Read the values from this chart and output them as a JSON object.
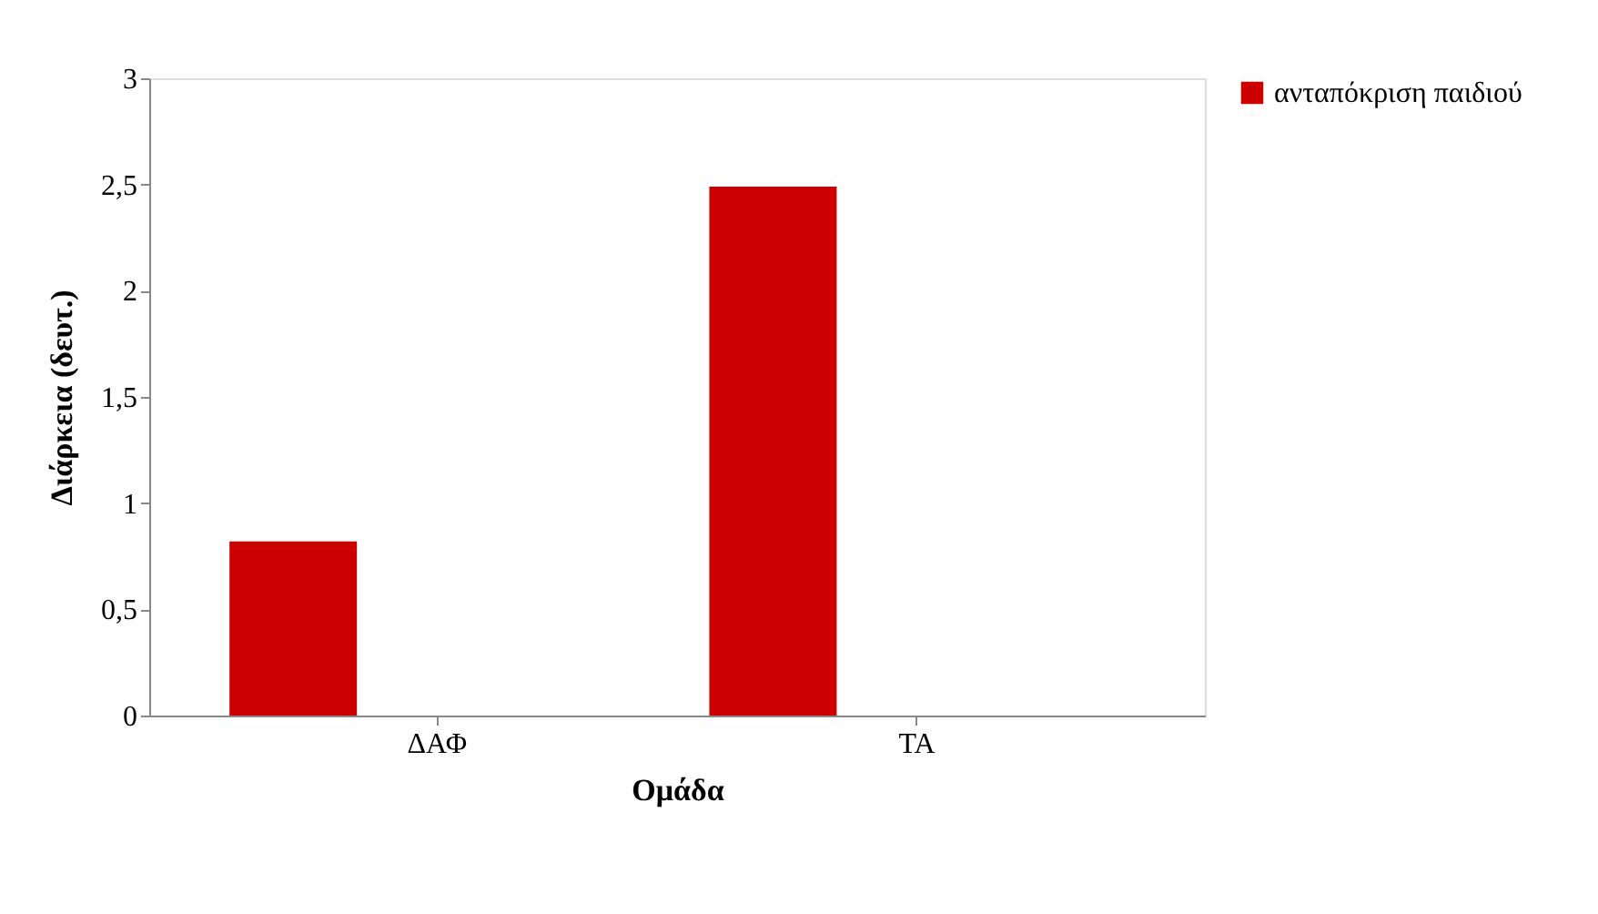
{
  "chart_data": {
    "type": "bar",
    "xlabel": "Ομάδα",
    "ylabel": "Διάρκεια (δευτ.)",
    "categories": [
      "ΔΑΦ",
      "ΤΑ"
    ],
    "series": [
      {
        "name": "ανταπόκριση παιδιού",
        "color": "#cc0000",
        "values": [
          0.82,
          2.49
        ]
      }
    ],
    "ylim": [
      0,
      3
    ],
    "yticks": [
      0,
      {
        "value": 0.5,
        "label": "0,5"
      },
      1,
      {
        "value": 1.5,
        "label": "1,5"
      },
      2,
      {
        "value": 2.5,
        "label": "2,5"
      },
      3
    ],
    "grid": false,
    "legend": "right"
  }
}
